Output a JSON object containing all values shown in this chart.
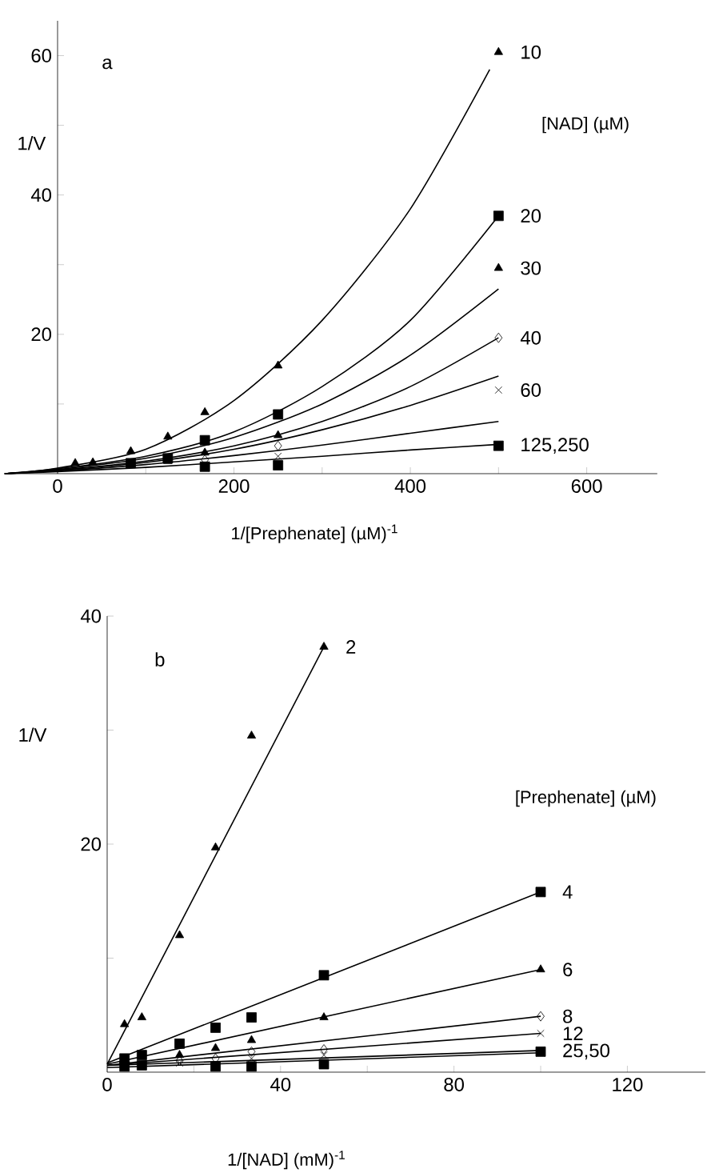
{
  "chart_data": [
    {
      "type": "scatter",
      "title": "a",
      "xlabel": "1/[Prephenate]   (µM)$^{-1}$",
      "ylabel": "1/V",
      "legend_title": "[NAD] (µM)",
      "xlim": [
        -60,
        680
      ],
      "ylim": [
        0,
        65
      ],
      "xticks": [
        0,
        {
          "value": 100,
          "label": null
        },
        200,
        {
          "value": 300,
          "label": null
        },
        400,
        {
          "value": 500,
          "label": null
        },
        600
      ],
      "yticks": [
        {
          "value": 10,
          "label": null
        },
        20,
        {
          "value": 30,
          "label": null
        },
        40,
        {
          "value": 50,
          "label": null
        },
        60
      ],
      "series": [
        {
          "name": "10",
          "type": "scatter",
          "marker": "triangle",
          "color": "#000000",
          "x": [
            20,
            40,
            83,
            125,
            167,
            250,
            500
          ],
          "values": [
            1.5,
            1.6,
            3.2,
            5.3,
            8.8,
            15.5,
            60.5
          ]
        },
        {
          "name": "20",
          "type": "scatter",
          "marker": "square",
          "color": "#000000",
          "x": [
            83,
            125,
            167,
            250,
            500
          ],
          "values": [
            1.5,
            2.2,
            4.8,
            8.5,
            37
          ]
        },
        {
          "name": "30",
          "type": "scatter",
          "marker": "triangle",
          "color": "#000000",
          "x": [
            125,
            167,
            250,
            500
          ],
          "values": [
            1.8,
            3,
            5.5,
            29.5
          ]
        },
        {
          "name": "40",
          "type": "scatter",
          "marker": "diamond",
          "color": "#000000",
          "x": [
            167,
            250,
            500
          ],
          "values": [
            2,
            4,
            19.5
          ]
        },
        {
          "name": "60",
          "type": "scatter",
          "marker": "cross",
          "color": "#000000",
          "x": [
            250,
            500
          ],
          "values": [
            2.5,
            12
          ]
        },
        {
          "name": "125,250",
          "type": "scatter",
          "marker": "square",
          "color": "#000000",
          "x": [
            167,
            250,
            500
          ],
          "values": [
            1,
            1.2,
            4
          ]
        },
        {
          "type": "line",
          "color": "#000000",
          "x": [
            -60,
            0,
            100,
            200,
            300,
            400,
            490
          ],
          "values": [
            0,
            0.8,
            3.5,
            10.5,
            22,
            38,
            58
          ]
        },
        {
          "type": "line",
          "color": "#000000",
          "x": [
            -60,
            0,
            100,
            200,
            300,
            400,
            500
          ],
          "values": [
            0,
            0.7,
            2.5,
            6,
            12.5,
            22,
            37
          ]
        },
        {
          "type": "line",
          "color": "#000000",
          "x": [
            -60,
            0,
            100,
            200,
            300,
            400,
            500
          ],
          "values": [
            0,
            0.6,
            2.2,
            5.2,
            10,
            17,
            26.5
          ]
        },
        {
          "type": "line",
          "color": "#000000",
          "x": [
            -60,
            0,
            100,
            200,
            300,
            400,
            500
          ],
          "values": [
            0,
            0.5,
            1.8,
            4,
            7.5,
            12.5,
            19.5
          ]
        },
        {
          "type": "line",
          "color": "#000000",
          "x": [
            -60,
            0,
            100,
            200,
            300,
            400,
            500
          ],
          "values": [
            0,
            0.5,
            1.6,
            3.5,
            6.3,
            9.8,
            14
          ]
        },
        {
          "type": "line",
          "color": "#000000",
          "x": [
            -60,
            0,
            100,
            200,
            300,
            400,
            500
          ],
          "values": [
            0,
            0.4,
            1.3,
            2.6,
            4.1,
            5.8,
            7.5
          ]
        },
        {
          "type": "line",
          "color": "#000000",
          "x": [
            -60,
            0,
            100,
            200,
            300,
            400,
            500
          ],
          "values": [
            0,
            0.3,
            0.9,
            1.7,
            2.5,
            3.4,
            4.2
          ]
        }
      ]
    },
    {
      "type": "scatter",
      "title": "b",
      "xlabel": "1/[NAD]     (mM)$^{-1}$",
      "ylabel": "1/V",
      "legend_title": "[Prephenate] (µM)",
      "xlim": [
        0,
        138
      ],
      "ylim": [
        0,
        40
      ],
      "xticks": [
        0,
        {
          "value": 20,
          "label": null
        },
        40,
        {
          "value": 60,
          "label": null
        },
        80,
        {
          "value": 100,
          "label": null
        },
        120
      ],
      "yticks": [
        {
          "value": 10,
          "label": null
        },
        20,
        {
          "value": 30,
          "label": null
        },
        40
      ],
      "series": [
        {
          "name": "2",
          "type": "scatter",
          "marker": "triangle",
          "color": "#000000",
          "x": [
            4,
            8,
            16.7,
            25,
            33.3,
            50
          ],
          "values": [
            4.2,
            4.8,
            12,
            19.7,
            29.5,
            37.3
          ]
        },
        {
          "name": "4",
          "type": "scatter",
          "marker": "square",
          "color": "#000000",
          "x": [
            4,
            8,
            16.7,
            25,
            33.3,
            50,
            100
          ],
          "values": [
            1.2,
            1.5,
            2.5,
            3.9,
            4.8,
            8.5,
            15.8
          ]
        },
        {
          "name": "6",
          "marker": "triangle",
          "color": "#000000",
          "x": [
            16.7,
            25,
            33.3,
            50,
            100
          ],
          "values": [
            1.5,
            2.1,
            2.8,
            4.8,
            9
          ]
        },
        {
          "name": "8",
          "type": "scatter",
          "marker": "diamond",
          "color": "#000000",
          "x": [
            16.7,
            25,
            33.3,
            50,
            100
          ],
          "values": [
            1,
            1.2,
            1.8,
            2,
            4.9
          ]
        },
        {
          "name": "12",
          "type": "scatter",
          "marker": "cross",
          "color": "#000000",
          "x": [
            16.7,
            33.3,
            50,
            100
          ],
          "values": [
            0.8,
            1.2,
            1.5,
            3.4
          ]
        },
        {
          "name": "25,50",
          "type": "scatter",
          "marker": "square",
          "color": "#000000",
          "x": [
            4,
            8,
            25,
            33.3,
            50,
            100
          ],
          "values": [
            0.5,
            0.6,
            0.5,
            0.5,
            0.7,
            1.8
          ]
        },
        {
          "type": "line",
          "color": "#000000",
          "x": [
            0,
            50
          ],
          "values": [
            0.7,
            37.3
          ]
        },
        {
          "type": "line",
          "color": "#000000",
          "x": [
            0,
            100
          ],
          "values": [
            0.8,
            15.8
          ]
        },
        {
          "type": "line",
          "color": "#000000",
          "x": [
            0,
            100
          ],
          "values": [
            0.7,
            9
          ]
        },
        {
          "type": "line",
          "color": "#000000",
          "x": [
            0,
            100
          ],
          "values": [
            0.6,
            4.9
          ]
        },
        {
          "type": "line",
          "color": "#000000",
          "x": [
            0,
            100
          ],
          "values": [
            0.6,
            3.4
          ]
        },
        {
          "type": "line",
          "color": "#000000",
          "x": [
            0,
            100
          ],
          "values": [
            0.6,
            1.9
          ]
        },
        {
          "type": "line",
          "color": "#000000",
          "x": [
            0,
            100
          ],
          "values": [
            0.4,
            1.7
          ]
        }
      ]
    }
  ]
}
